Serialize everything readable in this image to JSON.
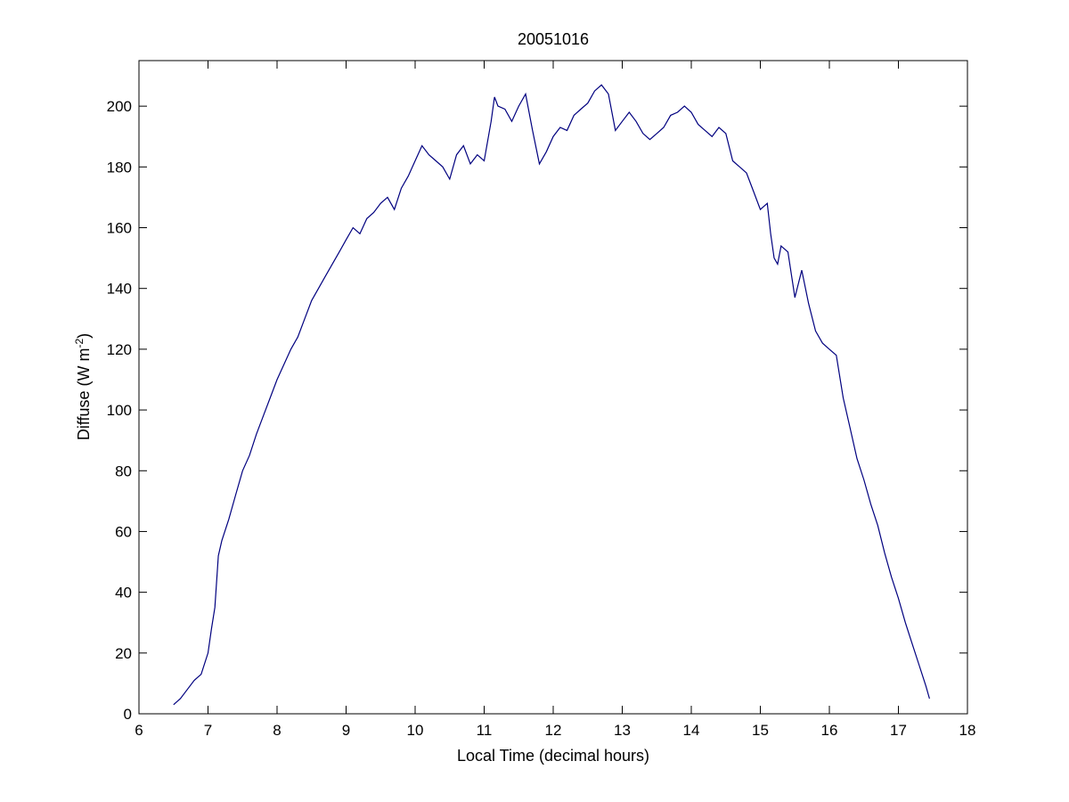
{
  "chart_data": {
    "type": "line",
    "title": "20051016",
    "xlabel": "Local Time (decimal hours)",
    "ylabel_main": "Diffuse (W m",
    "ylabel_sup": "-2",
    "ylabel_close": ")",
    "xlim": [
      6,
      18
    ],
    "ylim": [
      0,
      215
    ],
    "xticks": [
      6,
      7,
      8,
      9,
      10,
      11,
      12,
      13,
      14,
      15,
      16,
      17,
      18
    ],
    "yticks": [
      0,
      20,
      40,
      60,
      80,
      100,
      120,
      140,
      160,
      180,
      200
    ],
    "grid": false,
    "line_color": "#00007f",
    "series": [
      {
        "x": [
          6.5,
          6.6,
          6.7,
          6.8,
          6.9,
          7.0,
          7.05,
          7.1,
          7.15,
          7.2,
          7.3,
          7.4,
          7.5,
          7.6,
          7.7,
          7.8,
          7.9,
          8.0,
          8.1,
          8.2,
          8.3,
          8.4,
          8.5,
          8.6,
          8.7,
          8.8,
          8.9,
          9.0,
          9.1,
          9.2,
          9.3,
          9.4,
          9.5,
          9.6,
          9.7,
          9.8,
          9.9,
          10.0,
          10.1,
          10.2,
          10.3,
          10.4,
          10.5,
          10.6,
          10.7,
          10.8,
          10.9,
          11.0,
          11.1,
          11.15,
          11.2,
          11.3,
          11.4,
          11.5,
          11.6,
          11.7,
          11.8,
          11.9,
          12.0,
          12.1,
          12.2,
          12.3,
          12.4,
          12.5,
          12.6,
          12.7,
          12.8,
          12.9,
          13.0,
          13.1,
          13.2,
          13.3,
          13.4,
          13.5,
          13.6,
          13.7,
          13.8,
          13.9,
          14.0,
          14.1,
          14.2,
          14.3,
          14.4,
          14.5,
          14.6,
          14.7,
          14.8,
          14.9,
          15.0,
          15.1,
          15.15,
          15.2,
          15.25,
          15.3,
          15.4,
          15.5,
          15.6,
          15.7,
          15.8,
          15.9,
          16.0,
          16.1,
          16.2,
          16.3,
          16.4,
          16.5,
          16.6,
          16.7,
          16.8,
          16.9,
          17.0,
          17.1,
          17.2,
          17.3,
          17.4,
          17.45
        ],
        "y": [
          3,
          5,
          8,
          11,
          13,
          20,
          28,
          35,
          52,
          57,
          64,
          72,
          80,
          85,
          92,
          98,
          104,
          110,
          115,
          120,
          124,
          130,
          136,
          140,
          144,
          148,
          152,
          156,
          160,
          158,
          163,
          165,
          168,
          170,
          166,
          173,
          177,
          182,
          187,
          184,
          182,
          180,
          176,
          184,
          187,
          181,
          184,
          182,
          195,
          203,
          200,
          199,
          195,
          200,
          204,
          192,
          181,
          185,
          190,
          193,
          192,
          197,
          199,
          201,
          205,
          207,
          204,
          192,
          195,
          198,
          195,
          191,
          189,
          191,
          193,
          197,
          198,
          200,
          198,
          194,
          192,
          190,
          193,
          191,
          182,
          180,
          178,
          172,
          166,
          168,
          158,
          150,
          148,
          154,
          152,
          137,
          146,
          135,
          126,
          122,
          120,
          118,
          104,
          94,
          84,
          77,
          69,
          62,
          53,
          45,
          38,
          30,
          23,
          16,
          9,
          5
        ]
      }
    ]
  }
}
